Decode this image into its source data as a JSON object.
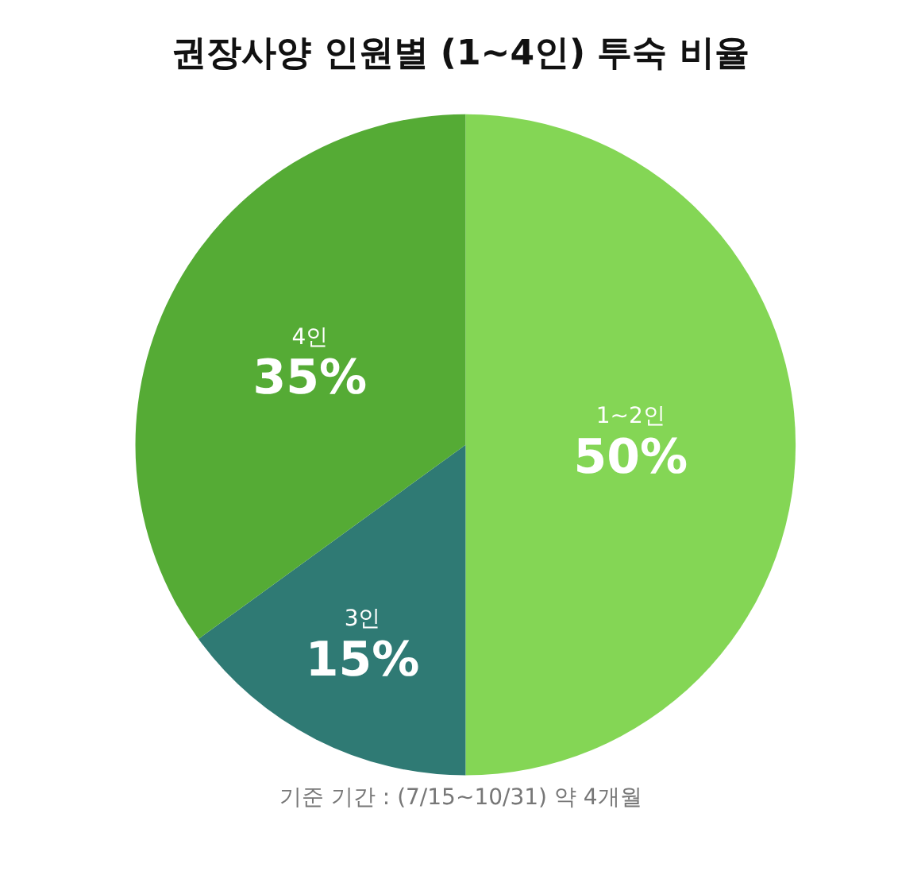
{
  "chart_data": {
    "type": "pie",
    "title": "권장사양 인원별 (1~4인) 투숙 비율",
    "categories": [
      "1~2인",
      "3인",
      "4인"
    ],
    "values": [
      50,
      15,
      35
    ],
    "colors": [
      "#84d655",
      "#2f7a74",
      "#55ab35"
    ],
    "value_labels": [
      "50%",
      "15%",
      "35%"
    ],
    "annotations": [
      "기준 기간 : (7/15~10/31) 약 4개월"
    ],
    "legend": false
  }
}
